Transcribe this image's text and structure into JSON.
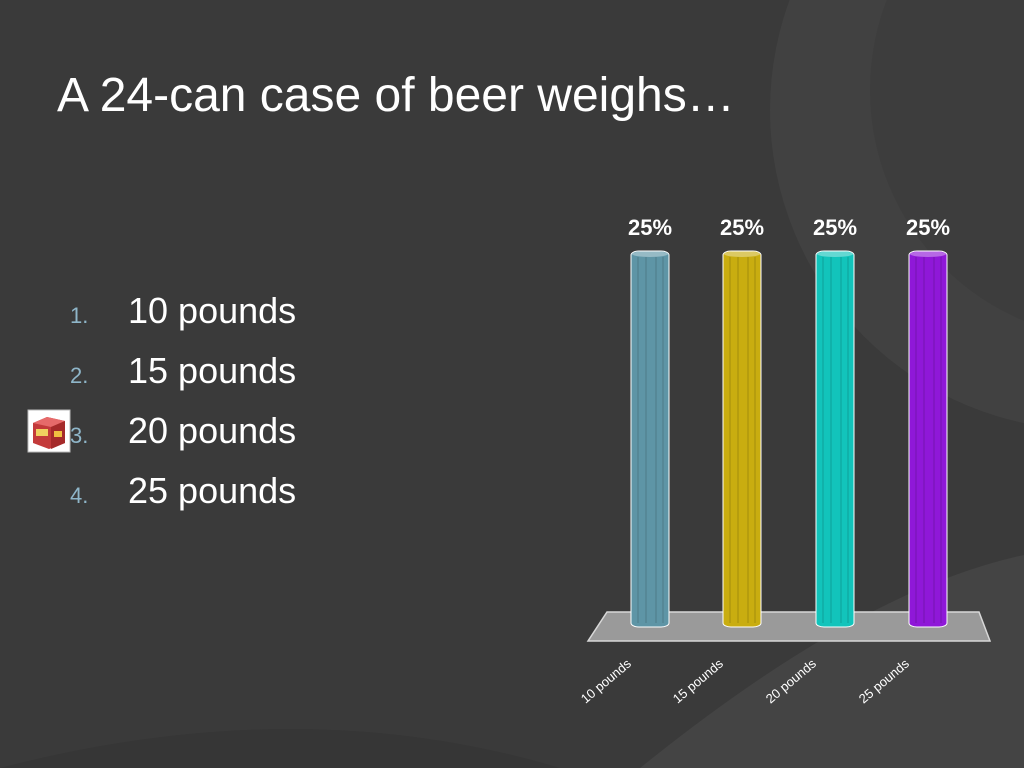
{
  "slide": {
    "title": "A 24-can case of beer weighs…",
    "options": [
      {
        "number": "1.",
        "label": "10 pounds"
      },
      {
        "number": "2.",
        "label": "15 pounds"
      },
      {
        "number": "3.",
        "label": "20 pounds"
      },
      {
        "number": "4.",
        "label": "25 pounds"
      }
    ],
    "correct_marker_icon": "beer-case-icon"
  },
  "colors": {
    "background": "#3a3a3a",
    "text": "#ffffff",
    "list_number": "#8fb6c9"
  },
  "chart_data": {
    "type": "bar",
    "categories": [
      "10 pounds",
      "15 pounds",
      "20 pounds",
      "25 pounds"
    ],
    "values": [
      25,
      25,
      25,
      25
    ],
    "data_labels": [
      "25%",
      "25%",
      "25%",
      "25%"
    ],
    "ylim": [
      0,
      25
    ],
    "grid": false,
    "colors": [
      "#5e95a6",
      "#c9ad10",
      "#12c4bb",
      "#8f18d8"
    ]
  }
}
